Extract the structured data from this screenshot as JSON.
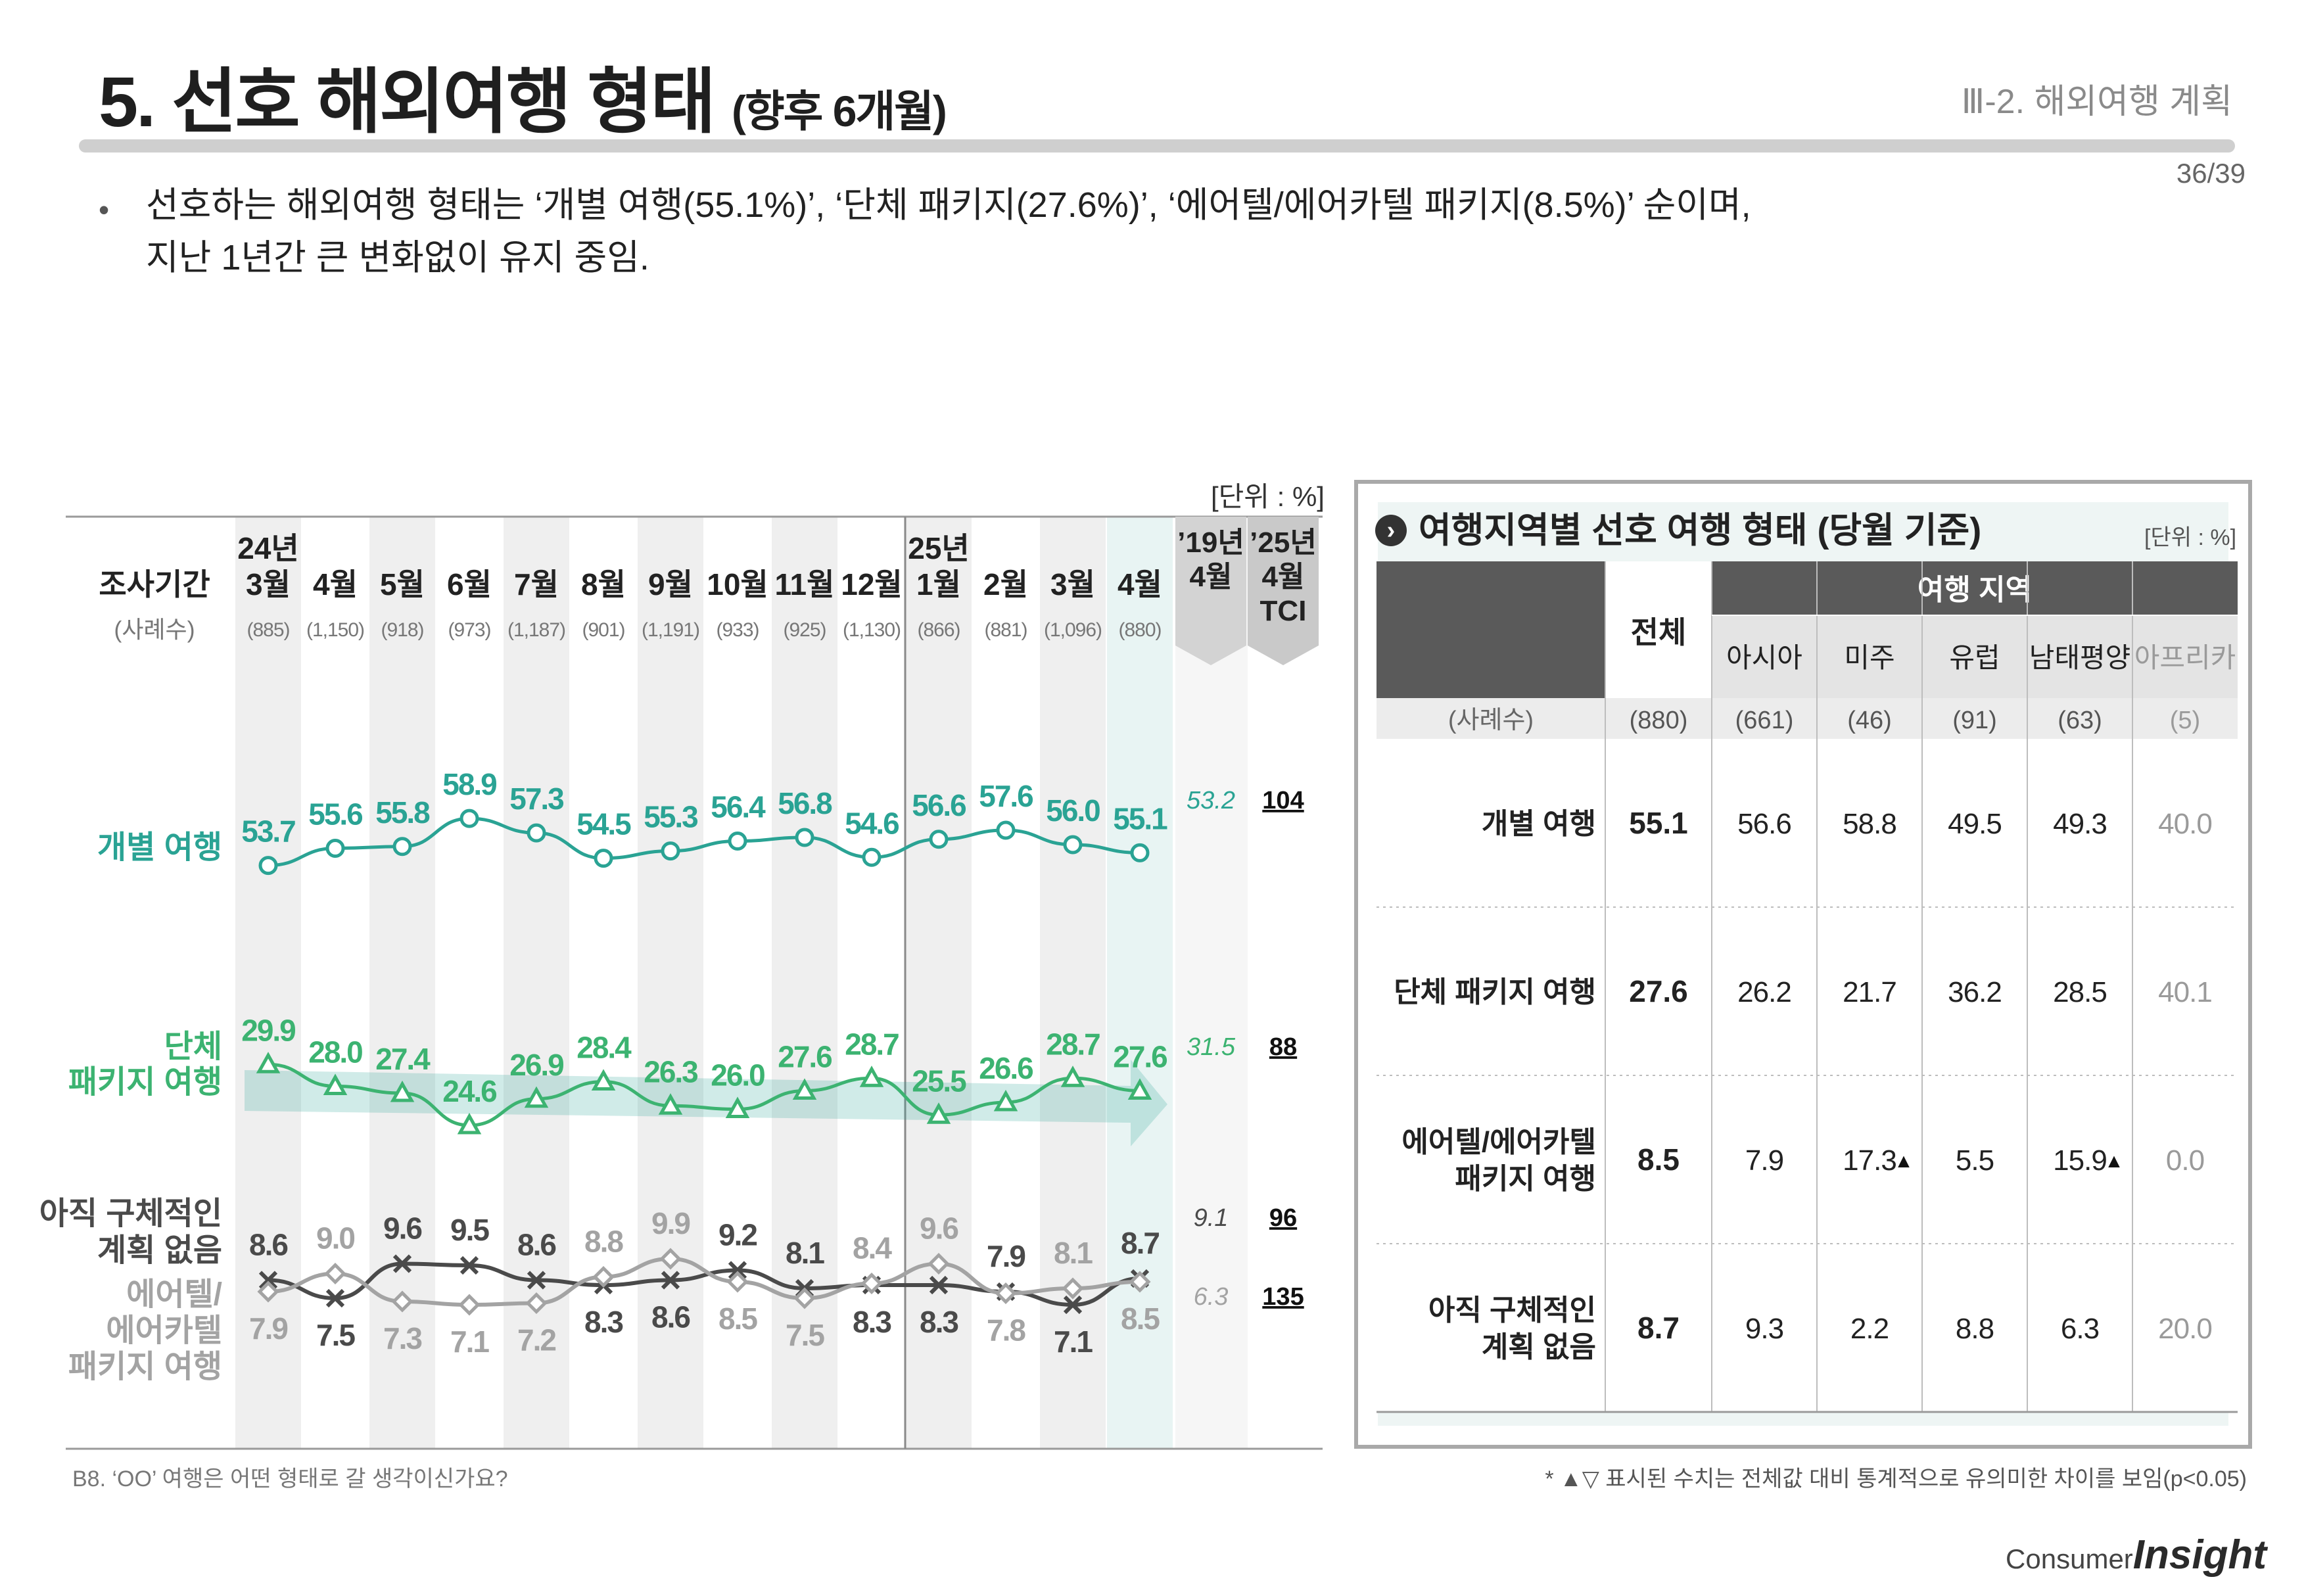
{
  "header": {
    "title": "5. 선호 해외여행 형태",
    "title_sub": "(향후 6개월)",
    "section": "Ⅲ-2. 해외여행 계획",
    "page": "36/39"
  },
  "summary": {
    "bullet": "•",
    "line1": "선호하는 해외여행 형태는 ‘개별 여행(55.1%)’, ‘단체 패키지(27.6%)’, ‘에어텔/에어카텔 패키지(8.5%)’ 순이며,",
    "line2": "지난 1년간 큰 변화없이 유지 중임."
  },
  "left_chart": {
    "unit": "[단위 : %]",
    "row_label": "조사기간",
    "n_label": "(사례수)",
    "year_labels": [
      {
        "col": 0,
        "text": "24년"
      },
      {
        "col": 10,
        "text": "25년"
      }
    ],
    "months": [
      "3월",
      "4월",
      "5월",
      "6월",
      "7월",
      "8월",
      "9월",
      "10월",
      "11월",
      "12월",
      "1월",
      "2월",
      "3월",
      "4월"
    ],
    "sample_sizes": [
      "(885)",
      "(1,150)",
      "(918)",
      "(973)",
      "(1,187)",
      "(901)",
      "(1,191)",
      "(933)",
      "(925)",
      "(1,130)",
      "(866)",
      "(881)",
      "(1,096)",
      "(880)"
    ],
    "ref_header_1": [
      "’19년",
      "4월"
    ],
    "ref_header_2": [
      "’25년",
      "4월",
      "TCI"
    ],
    "footnote": "B8. ‘OO’ 여행은 어떤 형태로 갈 생각이신가요?"
  },
  "chart_data": {
    "type": "line",
    "categories": [
      "24년 3월",
      "4월",
      "5월",
      "6월",
      "7월",
      "8월",
      "9월",
      "10월",
      "11월",
      "12월",
      "25년 1월",
      "2월",
      "3월",
      "4월"
    ],
    "unit": "%",
    "series": [
      {
        "name": "개별 여행",
        "label": "개별 여행",
        "color": "#2aa394",
        "marker": "circle",
        "values": [
          53.7,
          55.6,
          55.8,
          58.9,
          57.3,
          54.5,
          55.3,
          56.4,
          56.8,
          54.6,
          56.6,
          57.6,
          56.0,
          55.1
        ],
        "ref_2019": "53.2",
        "tci": "104"
      },
      {
        "name": "단체 패키지 여행",
        "label": "단체\n패키지 여행",
        "color": "#3cb371",
        "marker": "triangle",
        "values": [
          29.9,
          28.0,
          27.4,
          24.6,
          26.9,
          28.4,
          26.3,
          26.0,
          27.6,
          28.7,
          25.5,
          26.6,
          28.7,
          27.6
        ],
        "ref_2019": "31.5",
        "tci": "88"
      },
      {
        "name": "아직 구체적인 계획 없음",
        "label": "아직 구체적인\n계획 없음",
        "color": "#4a4a4a",
        "marker": "x",
        "values": [
          8.6,
          7.5,
          9.6,
          9.5,
          8.6,
          8.3,
          8.6,
          9.2,
          8.1,
          8.3,
          8.3,
          7.9,
          7.1,
          8.7
        ],
        "ref_2019": "9.1",
        "tci": "96"
      },
      {
        "name": "에어텔/에어카텔 패키지 여행",
        "label": "에어텔/\n에어카텔\n패키지 여행",
        "color": "#a3a3a3",
        "marker": "diamond",
        "values": [
          7.9,
          9.0,
          7.3,
          7.1,
          7.2,
          8.8,
          9.9,
          8.5,
          7.5,
          8.4,
          9.6,
          7.8,
          8.1,
          8.5
        ],
        "ref_2019": "6.3",
        "tci": "135"
      }
    ]
  },
  "right_table": {
    "title": "여행지역별 선호 여행 형태 (당월 기준)",
    "title_icon": "chevron-right-circle-icon",
    "unit": "[단위 : %]",
    "total_header": "전체",
    "group_header": "여행 지역",
    "regions": [
      "아시아",
      "미주",
      "유럽",
      "남태평양",
      "아프리카"
    ],
    "n_label": "(사례수)",
    "n_values": [
      "(880)",
      "(661)",
      "(46)",
      "(91)",
      "(63)",
      "(5)"
    ],
    "rows": [
      {
        "label": "개별 여행",
        "total": "55.1",
        "values": [
          "56.6",
          "58.8",
          "49.5",
          "49.3",
          "40.0"
        ],
        "marks": [
          "",
          "",
          "",
          "",
          ""
        ]
      },
      {
        "label": "단체 패키지 여행",
        "total": "27.6",
        "values": [
          "26.2",
          "21.7",
          "36.2",
          "28.5",
          "40.1"
        ],
        "marks": [
          "",
          "",
          "",
          "",
          ""
        ]
      },
      {
        "label": "에어텔/에어카텔\n패키지 여행",
        "total": "8.5",
        "values": [
          "7.9",
          "17.3",
          "5.5",
          "15.9",
          "0.0"
        ],
        "marks": [
          "",
          "▲",
          "",
          "▲",
          ""
        ]
      },
      {
        "label": "아직 구체적인\n계획 없음",
        "total": "8.7",
        "values": [
          "9.3",
          "2.2",
          "8.8",
          "6.3",
          "20.0"
        ],
        "marks": [
          "",
          "",
          "",
          "",
          ""
        ]
      }
    ],
    "footnote": "* ▲▽ 표시된 수치는 전체값 대비 통계적으로 유의미한 차이를 보임(p<0.05)"
  },
  "brand": {
    "prefix": "Consumer",
    "name": "Insight"
  }
}
